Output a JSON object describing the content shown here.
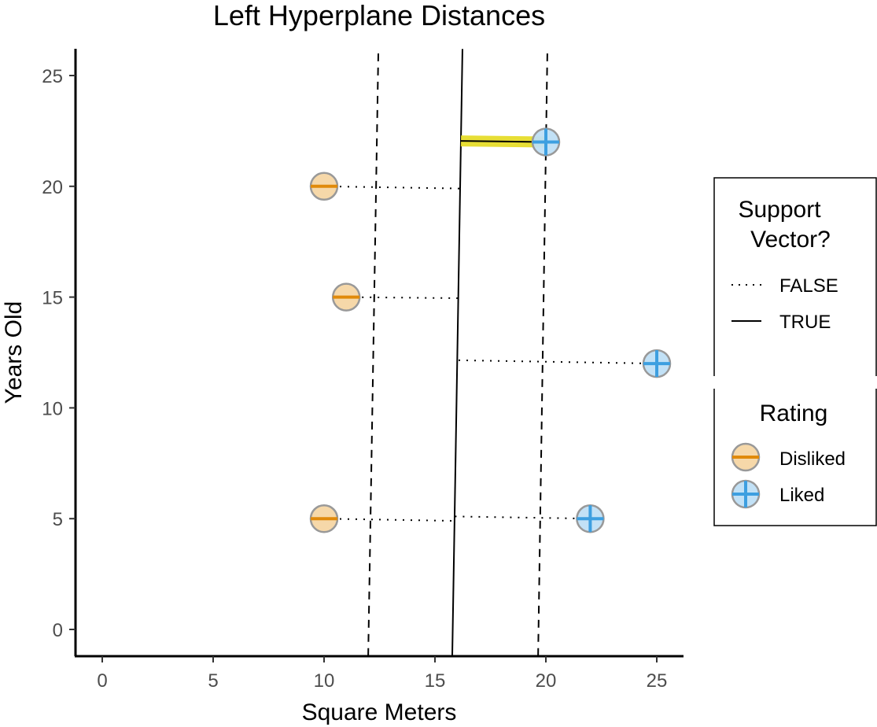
{
  "chart_data": {
    "type": "scatter",
    "title": "Left Hyperplane Distances",
    "xlabel": "Square Meters",
    "ylabel": "Years Old",
    "xlim": [
      -1.2,
      26.2
    ],
    "ylim": [
      -1.2,
      26.2
    ],
    "x_ticks": [
      0,
      5,
      10,
      15,
      20,
      25
    ],
    "y_ticks": [
      0,
      5,
      10,
      15,
      20,
      25
    ],
    "grid": false,
    "points": [
      {
        "x": 10,
        "y": 20,
        "rating": "Disliked"
      },
      {
        "x": 11,
        "y": 15,
        "rating": "Disliked"
      },
      {
        "x": 10,
        "y": 5,
        "rating": "Disliked"
      },
      {
        "x": 20,
        "y": 22,
        "rating": "Liked"
      },
      {
        "x": 25,
        "y": 12,
        "rating": "Liked"
      },
      {
        "x": 22,
        "y": 5,
        "rating": "Liked"
      }
    ],
    "hyperplane": {
      "x1": 15.78,
      "y1": -1.2,
      "x2": 16.24,
      "y2": 26.2
    },
    "margins": [
      {
        "x1": 11.99,
        "y1": -1.2,
        "x2": 12.45,
        "y2": 26.2
      },
      {
        "x1": 19.65,
        "y1": -1.2,
        "x2": 20.07,
        "y2": 26.2
      }
    ],
    "distance_segments": [
      {
        "from": [
          10,
          20
        ],
        "to": [
          16.14,
          19.9
        ],
        "support_vector": false
      },
      {
        "from": [
          11,
          15
        ],
        "to": [
          16.05,
          14.95
        ],
        "support_vector": false
      },
      {
        "from": [
          10,
          5
        ],
        "to": [
          15.89,
          4.9
        ],
        "support_vector": false
      },
      {
        "from": [
          20,
          22
        ],
        "to": [
          16.17,
          22.05
        ],
        "support_vector": true,
        "highlight": true
      },
      {
        "from": [
          25,
          12
        ],
        "to": [
          16.0,
          12.15
        ],
        "support_vector": false
      },
      {
        "from": [
          22,
          5
        ],
        "to": [
          15.89,
          5.1
        ],
        "support_vector": false
      }
    ],
    "legends": [
      {
        "title": "Support\nVector?",
        "title_lines": [
          "Support",
          "Vector?"
        ],
        "entries": [
          {
            "label": "FALSE",
            "style": "dotted"
          },
          {
            "label": "TRUE",
            "style": "solid"
          }
        ]
      },
      {
        "title": "Rating",
        "title_lines": [
          "Rating"
        ],
        "entries": [
          {
            "label": "Disliked",
            "shape": "circle-minus"
          },
          {
            "label": "Liked",
            "shape": "circle-plus"
          }
        ]
      }
    ],
    "legend_position": "right"
  },
  "colors": {
    "disliked_fill": "#f5d6a4",
    "disliked_stroke": "#e08a0b",
    "liked_fill": "#bfdff5",
    "liked_stroke": "#3d9fe0",
    "point_outline": "#999999",
    "highlight": "#e6dc2a"
  }
}
